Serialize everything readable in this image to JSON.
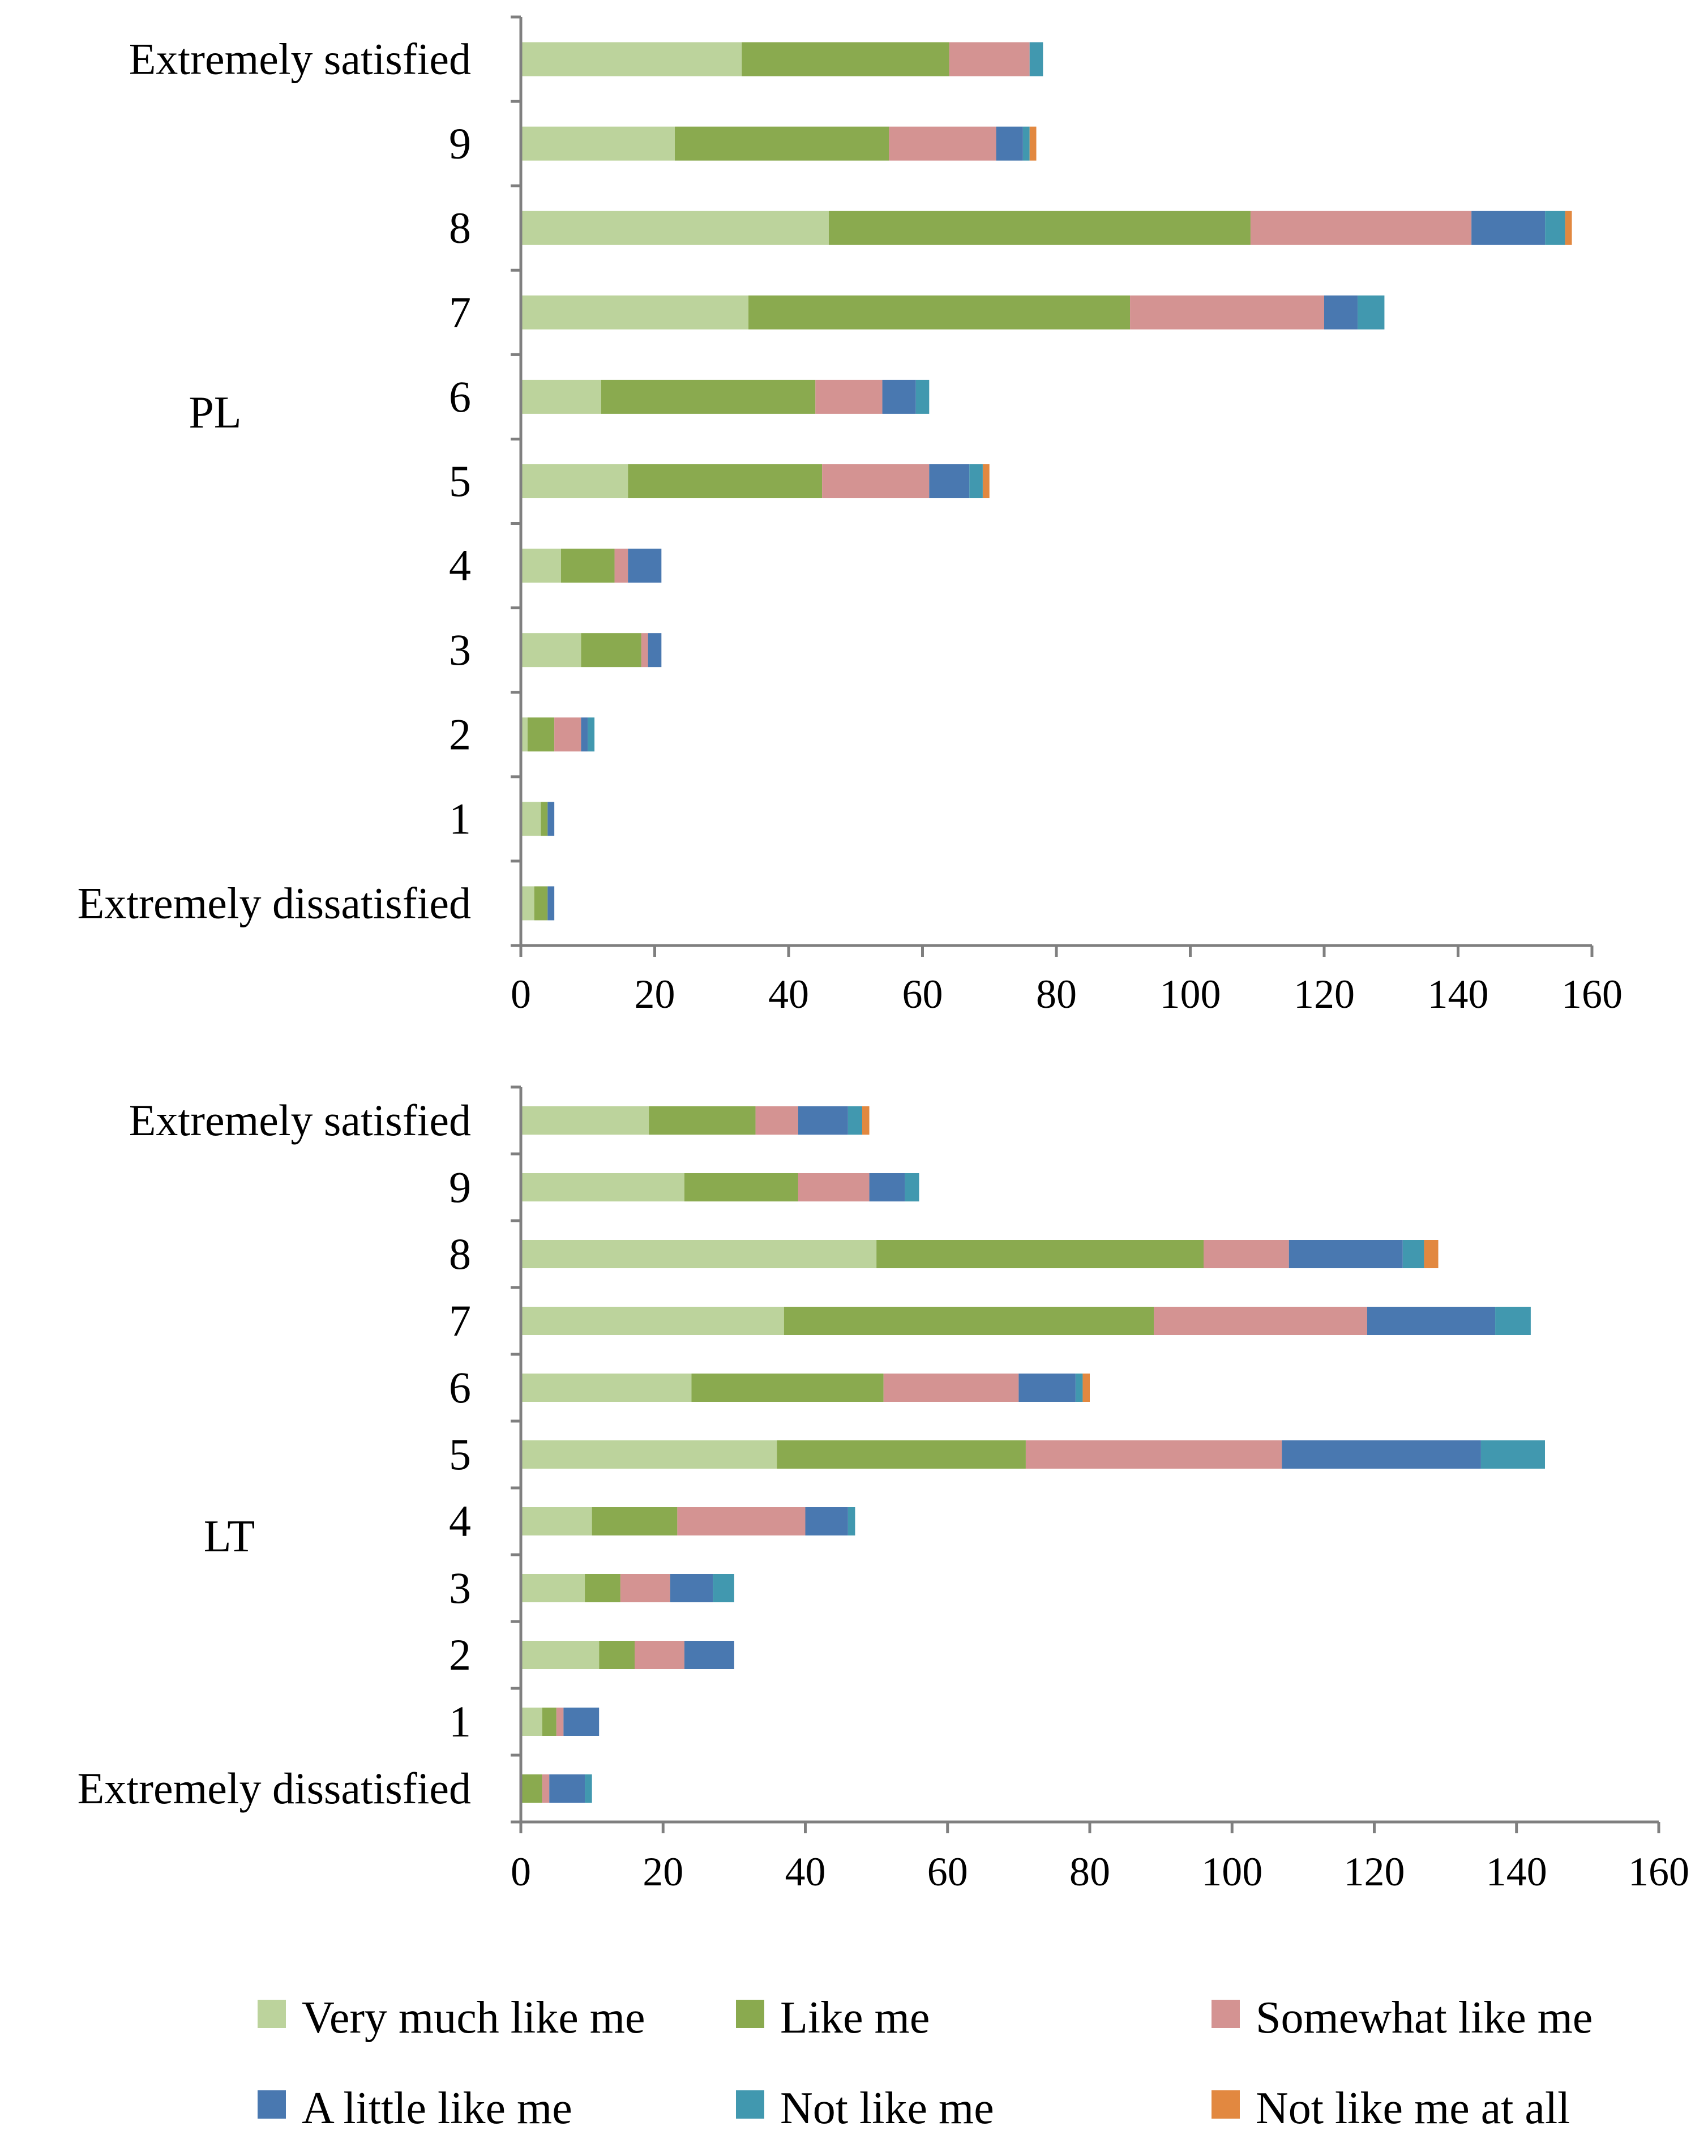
{
  "chart_data": [
    {
      "type": "bar",
      "orientation": "horizontal",
      "stacked": true,
      "group_label": "PL",
      "categories": [
        "Extremely dissatisfied",
        "1",
        "2",
        "3",
        "4",
        "5",
        "6",
        "7",
        "8",
        "9",
        "Extremely satisfied"
      ],
      "series": [
        {
          "name": "Very much like me",
          "color": "#bcd39c",
          "values": [
            2,
            3,
            1,
            9,
            6,
            16,
            12,
            34,
            46,
            23,
            33
          ]
        },
        {
          "name": "Like me",
          "color": "#8aaa4f",
          "values": [
            2,
            1,
            4,
            9,
            8,
            29,
            32,
            57,
            63,
            32,
            31
          ]
        },
        {
          "name": "Somewhat like me",
          "color": "#d49392",
          "values": [
            0,
            0,
            4,
            1,
            2,
            16,
            10,
            29,
            33,
            16,
            12
          ]
        },
        {
          "name": "A little like me",
          "color": "#4978b0",
          "values": [
            1,
            1,
            1,
            2,
            5,
            6,
            5,
            5,
            11,
            4,
            0
          ]
        },
        {
          "name": "Not like me",
          "color": "#4198af",
          "values": [
            0,
            0,
            1,
            0,
            0,
            2,
            2,
            4,
            3,
            1,
            2
          ]
        },
        {
          "name": "Not like me at all",
          "color": "#e28840",
          "values": [
            0,
            0,
            0,
            0,
            0,
            1,
            0,
            0,
            1,
            1,
            0
          ]
        }
      ],
      "xlim": [
        0,
        160
      ],
      "xticks": [
        "0",
        "20",
        "40",
        "60",
        "80",
        "100",
        "120",
        "140",
        "160"
      ]
    },
    {
      "type": "bar",
      "orientation": "horizontal",
      "stacked": true,
      "group_label": "LT",
      "categories": [
        "Extremely dissatisfied",
        "1",
        "2",
        "3",
        "4",
        "5",
        "6",
        "7",
        "8",
        "9",
        "Extremely satisfied"
      ],
      "series": [
        {
          "name": "Very much like me",
          "color": "#bcd39c",
          "values": [
            0,
            3,
            11,
            9,
            10,
            36,
            24,
            37,
            50,
            23,
            18
          ]
        },
        {
          "name": "Like me",
          "color": "#8aaa4f",
          "values": [
            3,
            2,
            5,
            5,
            12,
            35,
            27,
            52,
            46,
            16,
            15
          ]
        },
        {
          "name": "Somewhat like me",
          "color": "#d49392",
          "values": [
            1,
            1,
            7,
            7,
            18,
            36,
            19,
            30,
            12,
            10,
            6
          ]
        },
        {
          "name": "A little like me",
          "color": "#4978b0",
          "values": [
            5,
            5,
            7,
            6,
            6,
            28,
            8,
            18,
            16,
            5,
            7
          ]
        },
        {
          "name": "Not like me",
          "color": "#4198af",
          "values": [
            1,
            0,
            0,
            3,
            1,
            9,
            1,
            5,
            3,
            2,
            2
          ]
        },
        {
          "name": "Not like me at all",
          "color": "#e28840",
          "values": [
            0,
            0,
            0,
            0,
            0,
            0,
            1,
            0,
            2,
            0,
            1
          ]
        }
      ],
      "xlim": [
        0,
        160
      ],
      "xticks": [
        "0",
        "20",
        "40",
        "60",
        "80",
        "100",
        "120",
        "140",
        "160"
      ]
    }
  ],
  "legend": {
    "placement": "bottom",
    "items": [
      {
        "label": "Very much like me",
        "color": "#bcd39c"
      },
      {
        "label": "Like me",
        "color": "#8aaa4f"
      },
      {
        "label": "Somewhat like me",
        "color": "#d49392"
      },
      {
        "label": "A little like me",
        "color": "#4978b0"
      },
      {
        "label": "Not like me",
        "color": "#4198af"
      },
      {
        "label": "Not like me at all",
        "color": "#e28840"
      }
    ]
  }
}
